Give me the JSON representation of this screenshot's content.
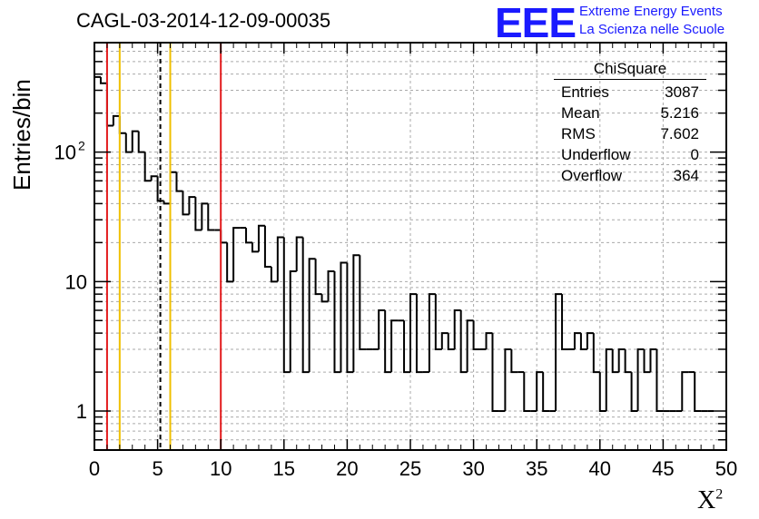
{
  "header": {
    "title": "CAGL-03-2014-12-09-00035",
    "logo": "EEE",
    "logo_line1": "Extreme Energy Events",
    "logo_line2": "La Scienza nelle Scuole"
  },
  "stats": {
    "title": "ChiSquare",
    "rows": [
      {
        "label": "Entries",
        "value": "3087"
      },
      {
        "label": "Mean",
        "value": "5.216"
      },
      {
        "label": "RMS",
        "value": "7.602"
      },
      {
        "label": "Underflow",
        "value": "0"
      },
      {
        "label": "Overflow",
        "value": "364"
      }
    ]
  },
  "colors": {
    "red_line": "#e31a1c",
    "yellow_line": "#f0c000",
    "grid": "#aaaaaa",
    "logo": "#1a1aff"
  },
  "chart_data": {
    "type": "histogram",
    "title": "CAGL-03-2014-12-09-00035",
    "xlabel": "X",
    "xlabel_sup": "2",
    "ylabel": "Entries/bin",
    "xlim": [
      0,
      50
    ],
    "ylim": [
      0.5,
      700
    ],
    "yscale": "log",
    "grid": true,
    "bin_width": 0.5,
    "x_ticks": [
      "0",
      "5",
      "10",
      "15",
      "20",
      "25",
      "30",
      "35",
      "40",
      "45",
      "50"
    ],
    "y_ticks": [
      {
        "value": 1,
        "label": "1"
      },
      {
        "value": 10,
        "label": "10"
      },
      {
        "value": 100,
        "label": "10",
        "sup": "2"
      }
    ],
    "values": [
      380,
      340,
      160,
      190,
      140,
      100,
      145,
      100,
      60,
      65,
      42,
      40,
      70,
      50,
      33,
      45,
      25,
      40,
      25,
      25,
      20,
      10,
      26,
      26,
      20,
      17,
      27,
      13,
      10,
      22,
      2,
      12,
      22,
      2,
      15,
      8,
      7,
      12,
      2,
      14,
      2,
      16,
      3,
      3,
      3,
      6,
      2,
      5,
      5,
      2,
      8,
      2,
      2,
      8,
      3,
      4,
      3,
      6,
      2,
      5,
      3,
      3,
      4,
      1,
      1,
      3,
      2,
      2,
      1,
      1,
      2,
      1,
      1,
      8,
      3,
      3,
      4,
      3,
      4,
      2,
      1,
      3,
      2,
      3,
      2,
      1,
      3,
      2,
      3,
      1,
      1,
      1,
      1,
      2,
      2,
      1,
      1,
      1
    ],
    "vertical_lines": [
      {
        "x": 1,
        "color": "red",
        "style": "solid"
      },
      {
        "x": 2,
        "color": "yellow",
        "style": "solid"
      },
      {
        "x": 5.216,
        "color": "black",
        "style": "dashed"
      },
      {
        "x": 6,
        "color": "yellow",
        "style": "solid"
      },
      {
        "x": 10,
        "color": "red",
        "style": "solid"
      }
    ]
  }
}
